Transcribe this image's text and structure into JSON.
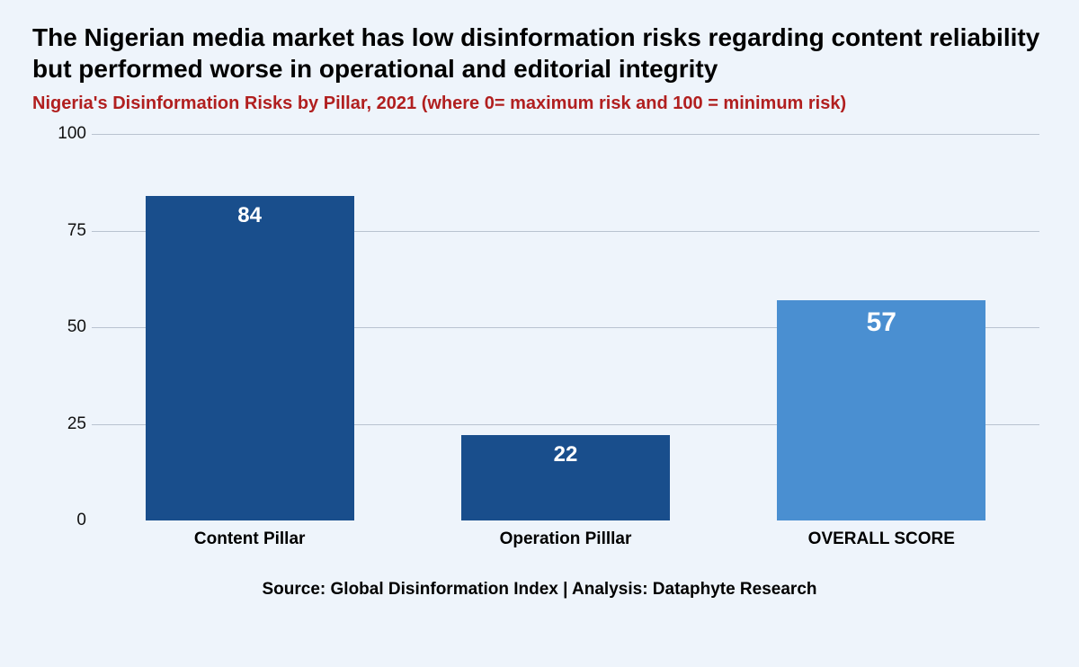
{
  "title": "The Nigerian media market has low disinformation risks regarding content reliability but performed worse in operational and editorial integrity",
  "subtitle": "Nigeria's Disinformation Risks by Pillar, 2021  (where 0= maximum risk and 100 = minimum risk)",
  "subtitle_color": "#b11f1f",
  "source": "Source: Global Disinformation Index | Analysis: Dataphyte Research",
  "chart": {
    "type": "bar",
    "background_color": "#eef4fb",
    "grid_color": "#b9c3d0",
    "ylim": [
      0,
      100
    ],
    "ytick_step": 25,
    "yticks": [
      0,
      25,
      50,
      75,
      100
    ],
    "tick_fontsize": 19,
    "categories": [
      "Content Pillar",
      "Operation Pilllar",
      "OVERALL SCORE"
    ],
    "category_fontsize": 19,
    "category_fontweight": 700,
    "values": [
      84,
      22,
      57
    ],
    "bar_colors": [
      "#194e8c",
      "#194e8c",
      "#4a8fd1"
    ],
    "value_label_color": "#ffffff",
    "value_label_fontsizes": [
      24,
      24,
      30
    ],
    "bar_width": 0.66
  }
}
